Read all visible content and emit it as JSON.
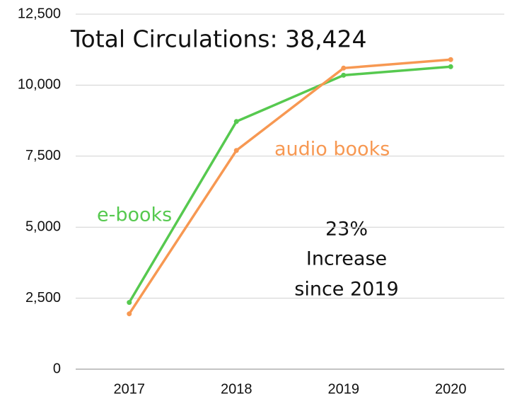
{
  "chart_data": {
    "type": "line",
    "title": "Total Circulations: 38,424",
    "categories": [
      "2017",
      "2018",
      "2019",
      "2020"
    ],
    "series": [
      {
        "name": "e-books",
        "color": "#56c94f",
        "values": [
          2350,
          8720,
          10350,
          10650
        ]
      },
      {
        "name": "audio books",
        "color": "#f79852",
        "values": [
          1950,
          7700,
          10600,
          10900
        ]
      }
    ],
    "annotation": [
      "23%",
      "Increase",
      "since 2019"
    ],
    "ylim": [
      0,
      12500
    ],
    "yticks": [
      0,
      {
        "value": 2500,
        "label": "2,500"
      },
      {
        "value": 5000,
        "label": "5,000"
      },
      {
        "value": 7500,
        "label": "7,500"
      },
      {
        "value": 10000,
        "label": "10,000"
      },
      {
        "value": 12500,
        "label": "12,500"
      }
    ],
    "grid": true
  }
}
